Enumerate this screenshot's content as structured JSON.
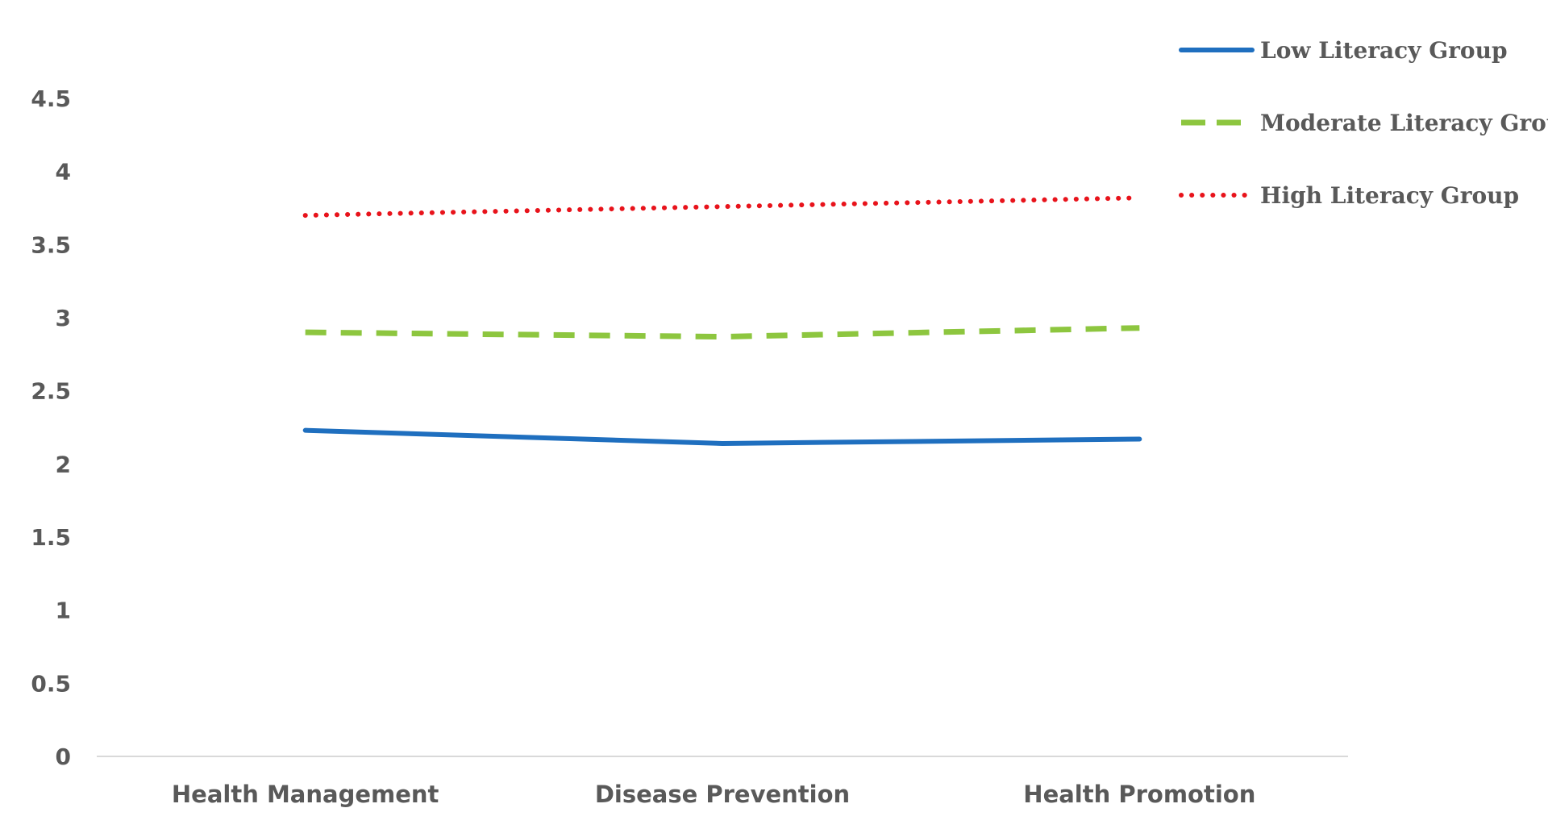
{
  "chart_data": {
    "type": "line",
    "title": "",
    "xlabel": "",
    "ylabel": "",
    "categories": [
      "Health Management",
      "Disease Prevention",
      "Health Promotion"
    ],
    "ylim": [
      0,
      4.5
    ],
    "yticks": [
      "0",
      "0.5",
      "1",
      "1.5",
      "2",
      "2.5",
      "3",
      "3.5",
      "4",
      "4.5"
    ],
    "grid": false,
    "legend_position": "top-right",
    "series": [
      {
        "name": "Low Literacy Group",
        "values": [
          2.23,
          2.14,
          2.17
        ],
        "color": "#1F6FBF",
        "style": "solid"
      },
      {
        "name": "Moderate Literacy Group",
        "values": [
          2.9,
          2.87,
          2.93
        ],
        "color": "#8DC63F",
        "style": "dashed"
      },
      {
        "name": "High Literacy Group",
        "values": [
          3.7,
          3.76,
          3.82
        ],
        "color": "#E8131B",
        "style": "dotted"
      }
    ]
  }
}
